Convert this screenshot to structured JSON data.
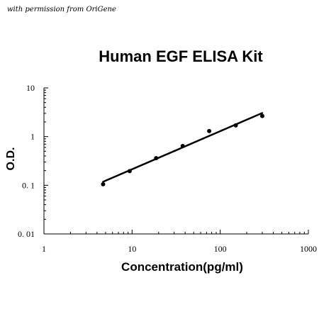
{
  "credit": "with permission from OriGene",
  "chart_data": {
    "type": "scatter",
    "title": "Human EGF ELISA Kit",
    "xlabel": "Concentration(pg/ml)",
    "ylabel": "O.D.",
    "x_scale": "log",
    "y_scale": "log",
    "xlim": [
      1,
      1000
    ],
    "ylim": [
      0.01,
      10
    ],
    "x_ticks": [
      {
        "value": 1,
        "label": "1"
      },
      {
        "value": 10,
        "label": "10"
      },
      {
        "value": 100,
        "label": "100"
      },
      {
        "value": 1000,
        "label": "1000"
      }
    ],
    "y_ticks": [
      {
        "value": 0.01,
        "label": "0. 01"
      },
      {
        "value": 0.1,
        "label": "0. 1"
      },
      {
        "value": 1,
        "label": "1"
      },
      {
        "value": 10,
        "label": "10"
      }
    ],
    "points": [
      {
        "x": 4.69,
        "y": 0.105
      },
      {
        "x": 9.38,
        "y": 0.195
      },
      {
        "x": 18.75,
        "y": 0.36
      },
      {
        "x": 37.5,
        "y": 0.64
      },
      {
        "x": 75,
        "y": 1.3
      },
      {
        "x": 150,
        "y": 1.7
      },
      {
        "x": 300,
        "y": 2.65
      }
    ],
    "fit_line": {
      "x": [
        4.69,
        300
      ],
      "y": [
        0.118,
        3.05
      ]
    },
    "grid": false,
    "legend": "none",
    "colors": {
      "points": "#000000",
      "line": "#000000",
      "axes": "#000000"
    }
  }
}
